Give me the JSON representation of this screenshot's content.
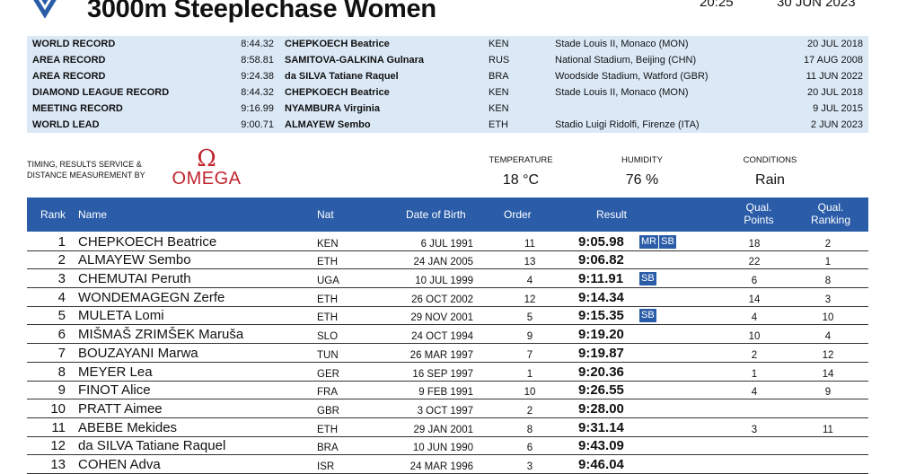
{
  "header": {
    "title": "3000m Steeplechase Women",
    "time": "20:25",
    "date": "30 JUN 2023"
  },
  "records": [
    {
      "type": "WORLD RECORD",
      "result": "8:44.32",
      "name": "CHEPKOECH Beatrice",
      "nat": "KEN",
      "venue": "Stade Louis II, Monaco (MON)",
      "date": "20 JUL 2018"
    },
    {
      "type": "AREA RECORD",
      "result": "8:58.81",
      "name": "SAMITOVA-GALKINA Gulnara",
      "nat": "RUS",
      "venue": "National Stadium, Beijing (CHN)",
      "date": "17 AUG 2008"
    },
    {
      "type": "AREA RECORD",
      "result": "9:24.38",
      "name": "da SILVA Tatiane Raquel",
      "nat": "BRA",
      "venue": "Woodside Stadium, Watford (GBR)",
      "date": "11 JUN 2022"
    },
    {
      "type": "DIAMOND LEAGUE RECORD",
      "result": "8:44.32",
      "name": "CHEPKOECH Beatrice",
      "nat": "KEN",
      "venue": "Stade Louis II, Monaco (MON)",
      "date": "20 JUL 2018"
    },
    {
      "type": "MEETING RECORD",
      "result": "9:16.99",
      "name": "NYAMBURA Virginia",
      "nat": "KEN",
      "venue": "",
      "date": "9 JUL 2015"
    },
    {
      "type": "WORLD LEAD",
      "result": "9:00.71",
      "name": "ALMAYEW Sembo",
      "nat": "ETH",
      "venue": "Stadio Luigi Ridolfi, Firenze (ITA)",
      "date": "2 JUN 2023"
    }
  ],
  "sponsor": {
    "line1": "TIMING, RESULTS SERVICE &",
    "line2": "DISTANCE MEASUREMENT BY",
    "logo_symbol": "Ω",
    "logo_text": "OMEGA"
  },
  "conditions": {
    "temperature_label": "TEMPERATURE",
    "temperature": "18 °C",
    "humidity_label": "HUMIDITY",
    "humidity": "76 %",
    "conditions_label": "CONDITIONS",
    "conditions": "Rain"
  },
  "table": {
    "headers": {
      "rank": "Rank",
      "name": "Name",
      "nat": "Nat",
      "dob": "Date of Birth",
      "order": "Order",
      "result": "Result",
      "qp1": "Qual.",
      "qp2": "Points",
      "qr1": "Qual.",
      "qr2": "Ranking"
    },
    "rows": [
      {
        "rank": "1",
        "name": "CHEPKOECH Beatrice",
        "nat": "KEN",
        "dob": "6 JUL 1991",
        "order": "11",
        "result": "9:05.98",
        "tags": [
          "MR",
          "SB"
        ],
        "qp": "18",
        "qr": "2"
      },
      {
        "rank": "2",
        "name": "ALMAYEW Sembo",
        "nat": "ETH",
        "dob": "24 JAN 2005",
        "order": "13",
        "result": "9:06.82",
        "tags": [],
        "qp": "22",
        "qr": "1"
      },
      {
        "rank": "3",
        "name": "CHEMUTAI Peruth",
        "nat": "UGA",
        "dob": "10 JUL 1999",
        "order": "4",
        "result": "9:11.91",
        "tags": [
          "SB"
        ],
        "qp": "6",
        "qr": "8"
      },
      {
        "rank": "4",
        "name": "WONDEMAGEGN Zerfe",
        "nat": "ETH",
        "dob": "26 OCT 2002",
        "order": "12",
        "result": "9:14.34",
        "tags": [],
        "qp": "14",
        "qr": "3"
      },
      {
        "rank": "5",
        "name": "MULETA Lomi",
        "nat": "ETH",
        "dob": "29 NOV 2001",
        "order": "5",
        "result": "9:15.35",
        "tags": [
          "SB"
        ],
        "qp": "4",
        "qr": "10"
      },
      {
        "rank": "6",
        "name": "MIŠMAŠ ZRIMŠEK Maruša",
        "nat": "SLO",
        "dob": "24 OCT 1994",
        "order": "9",
        "result": "9:19.20",
        "tags": [],
        "qp": "10",
        "qr": "4"
      },
      {
        "rank": "7",
        "name": "BOUZAYANI Marwa",
        "nat": "TUN",
        "dob": "26 MAR 1997",
        "order": "7",
        "result": "9:19.87",
        "tags": [],
        "qp": "2",
        "qr": "12"
      },
      {
        "rank": "8",
        "name": "MEYER Lea",
        "nat": "GER",
        "dob": "16 SEP 1997",
        "order": "1",
        "result": "9:20.36",
        "tags": [],
        "qp": "1",
        "qr": "14"
      },
      {
        "rank": "9",
        "name": "FINOT Alice",
        "nat": "FRA",
        "dob": "9 FEB 1991",
        "order": "10",
        "result": "9:26.55",
        "tags": [],
        "qp": "4",
        "qr": "9"
      },
      {
        "rank": "10",
        "name": "PRATT Aimee",
        "nat": "GBR",
        "dob": "3 OCT 1997",
        "order": "2",
        "result": "9:28.00",
        "tags": [],
        "qp": "",
        "qr": ""
      },
      {
        "rank": "11",
        "name": "ABEBE Mekides",
        "nat": "ETH",
        "dob": "29 JAN 2001",
        "order": "8",
        "result": "9:31.14",
        "tags": [],
        "qp": "3",
        "qr": "11"
      },
      {
        "rank": "12",
        "name": "da SILVA Tatiane Raquel",
        "nat": "BRA",
        "dob": "10 JUN 1990",
        "order": "6",
        "result": "9:43.09",
        "tags": [],
        "qp": "",
        "qr": ""
      },
      {
        "rank": "13",
        "name": "COHEN Adva",
        "nat": "ISR",
        "dob": "24 MAR 1996",
        "order": "3",
        "result": "9:46.04",
        "tags": [],
        "qp": "",
        "qr": ""
      }
    ]
  },
  "colors": {
    "accent": "#2a5ca8",
    "record_bg": "#dbe9f7",
    "omega": "#c0242e"
  }
}
